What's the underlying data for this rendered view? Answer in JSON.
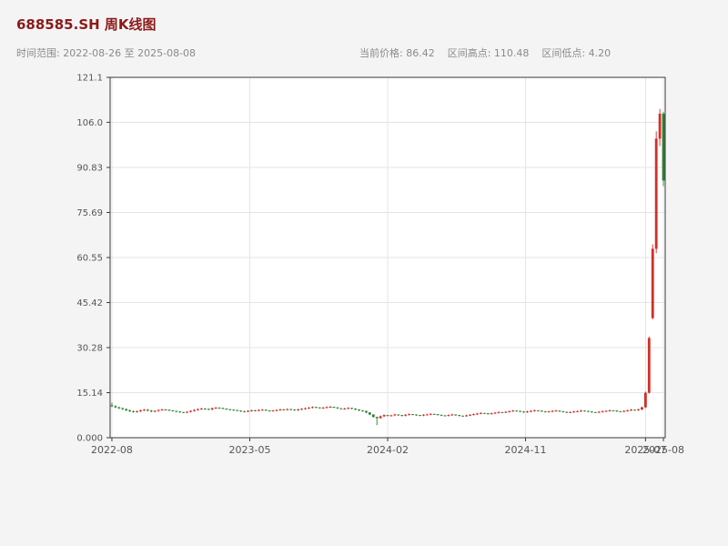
{
  "header": {
    "title": "688585.SH 周K线图",
    "title_color": "#8b1a1a",
    "time_range_label": "时间范围: 2022-08-26 至 2025-08-08",
    "stats": {
      "current_price_label": "当前价格: 86.42",
      "range_high_label": "区间高点: 110.48",
      "range_low_label": "区间低点: 4.20",
      "current_price": 86.42,
      "range_high": 110.48,
      "range_low": 4.2
    }
  },
  "chart_data": {
    "type": "candlestick",
    "title": "688585.SH 周K线图",
    "symbol": "688585.SH",
    "interval": "weekly",
    "date_start": "2022-08-26",
    "date_end": "2025-08-08",
    "xlabel": "",
    "ylabel": "",
    "ylim": [
      0,
      121.1
    ],
    "grid": true,
    "plot_bg": "#ffffff",
    "page_bg": "#f4f4f5",
    "grid_color": "#e4e4e7",
    "spine_color": "#3a3a3a",
    "tick_color": "#555555",
    "up_color": "#d03028",
    "down_color": "#2e7d32",
    "y_ticks": [
      0,
      15.14,
      30.28,
      45.42,
      60.55,
      75.69,
      90.83,
      106.0,
      121.1
    ],
    "y_tick_labels": [
      "0.000",
      "15.14",
      "30.28",
      "45.42",
      "60.55",
      "75.69",
      "90.83",
      "106.0",
      "121.1"
    ],
    "x_tick_labels": [
      "2022-08",
      "2023-05",
      "2024-02",
      "2024-11",
      "2025-07",
      "2025-08"
    ],
    "x_tick_positions": [
      0,
      38.5,
      77,
      115.5,
      149,
      154
    ],
    "candles": [
      [
        10.9,
        11.8,
        10.3,
        10.6
      ],
      [
        10.6,
        10.85,
        9.95,
        10.2
      ],
      [
        10.2,
        10.45,
        9.65,
        9.9
      ],
      [
        9.9,
        10.15,
        9.35,
        9.6
      ],
      [
        9.6,
        9.85,
        8.95,
        9.2
      ],
      [
        9.2,
        9.45,
        8.65,
        8.9
      ],
      [
        8.9,
        9.15,
        8.45,
        8.7
      ],
      [
        8.7,
        9.15,
        8.45,
        8.9
      ],
      [
        8.9,
        9.45,
        8.65,
        9.2
      ],
      [
        9.2,
        9.65,
        8.95,
        9.4
      ],
      [
        9.4,
        9.65,
        8.85,
        9.1
      ],
      [
        9.1,
        9.35,
        8.55,
        8.8
      ],
      [
        8.8,
        9.25,
        8.55,
        9.0
      ],
      [
        9.0,
        9.55,
        8.75,
        9.3
      ],
      [
        9.3,
        9.75,
        9.05,
        9.5
      ],
      [
        9.5,
        9.65,
        9.15,
        9.4
      ],
      [
        9.4,
        9.45,
        8.95,
        9.2
      ],
      [
        9.2,
        9.25,
        8.75,
        9.0
      ],
      [
        9.0,
        9.05,
        8.55,
        8.8
      ],
      [
        8.8,
        8.85,
        8.35,
        8.6
      ],
      [
        8.6,
        8.65,
        8.25,
        8.5
      ],
      [
        8.5,
        8.95,
        8.25,
        8.7
      ],
      [
        8.7,
        9.25,
        8.45,
        9.0
      ],
      [
        9.0,
        9.55,
        8.75,
        9.3
      ],
      [
        9.3,
        9.85,
        9.05,
        9.6
      ],
      [
        9.6,
        10.05,
        9.35,
        9.8
      ],
      [
        9.8,
        9.95,
        9.45,
        9.7
      ],
      [
        9.7,
        9.75,
        9.25,
        9.5
      ],
      [
        9.5,
        10.15,
        9.25,
        9.9
      ],
      [
        9.9,
        10.35,
        9.65,
        10.1
      ],
      [
        10.1,
        10.25,
        9.75,
        10.0
      ],
      [
        10.0,
        10.05,
        9.55,
        9.8
      ],
      [
        9.8,
        9.85,
        9.35,
        9.6
      ],
      [
        9.6,
        9.65,
        9.15,
        9.4
      ],
      [
        9.4,
        9.55,
        9.05,
        9.3
      ],
      [
        9.3,
        9.35,
        8.85,
        9.1
      ],
      [
        9.1,
        9.15,
        8.65,
        8.9
      ],
      [
        8.9,
        9.05,
        8.55,
        8.8
      ],
      [
        8.8,
        9.25,
        8.55,
        9.0
      ],
      [
        9.0,
        9.45,
        8.75,
        9.2
      ],
      [
        9.2,
        9.35,
        8.85,
        9.1
      ],
      [
        9.1,
        9.55,
        8.85,
        9.3
      ],
      [
        9.3,
        9.65,
        9.05,
        9.4
      ],
      [
        9.4,
        9.45,
        8.95,
        9.2
      ],
      [
        9.2,
        9.25,
        8.75,
        9.0
      ],
      [
        9.0,
        9.35,
        8.75,
        9.1
      ],
      [
        9.1,
        9.55,
        8.85,
        9.3
      ],
      [
        9.3,
        9.75,
        9.05,
        9.5
      ],
      [
        9.5,
        9.65,
        9.15,
        9.4
      ],
      [
        9.4,
        9.85,
        9.15,
        9.6
      ],
      [
        9.6,
        9.75,
        9.25,
        9.5
      ],
      [
        9.5,
        9.55,
        9.05,
        9.3
      ],
      [
        9.3,
        9.75,
        9.05,
        9.5
      ],
      [
        9.5,
        9.95,
        9.25,
        9.7
      ],
      [
        9.7,
        10.15,
        9.45,
        9.9
      ],
      [
        9.9,
        10.35,
        9.65,
        10.1
      ],
      [
        10.1,
        10.55,
        9.85,
        10.3
      ],
      [
        10.3,
        10.45,
        9.95,
        10.2
      ],
      [
        10.2,
        10.25,
        9.75,
        10.0
      ],
      [
        10.0,
        10.35,
        9.75,
        10.1
      ],
      [
        10.1,
        10.55,
        9.85,
        10.3
      ],
      [
        10.3,
        10.65,
        10.05,
        10.4
      ],
      [
        10.4,
        10.45,
        9.95,
        10.2
      ],
      [
        10.2,
        10.25,
        9.65,
        9.9
      ],
      [
        9.9,
        9.95,
        9.45,
        9.7
      ],
      [
        9.7,
        10.05,
        9.45,
        9.8
      ],
      [
        9.8,
        10.25,
        9.55,
        10.0
      ],
      [
        10.0,
        10.05,
        9.55,
        9.8
      ],
      [
        9.8,
        9.85,
        9.25,
        9.5
      ],
      [
        9.5,
        9.55,
        8.95,
        9.2
      ],
      [
        9.2,
        9.25,
        8.75,
        9.0
      ],
      [
        9.0,
        9.05,
        8.25,
        8.5
      ],
      [
        8.5,
        8.55,
        7.55,
        7.8
      ],
      [
        7.8,
        7.85,
        6.75,
        7.0
      ],
      [
        7.0,
        7.05,
        4.2,
        6.6
      ],
      [
        6.6,
        7.45,
        6.35,
        7.2
      ],
      [
        7.2,
        7.85,
        6.95,
        7.6
      ],
      [
        7.6,
        7.65,
        7.15,
        7.4
      ],
      [
        7.4,
        7.75,
        7.15,
        7.5
      ],
      [
        7.5,
        8.05,
        7.25,
        7.8
      ],
      [
        7.8,
        7.85,
        7.35,
        7.6
      ],
      [
        7.6,
        7.65,
        7.15,
        7.4
      ],
      [
        7.4,
        7.95,
        7.15,
        7.7
      ],
      [
        7.7,
        8.15,
        7.45,
        7.9
      ],
      [
        7.9,
        7.95,
        7.55,
        7.8
      ],
      [
        7.8,
        7.85,
        7.35,
        7.6
      ],
      [
        7.6,
        7.65,
        7.25,
        7.5
      ],
      [
        7.5,
        7.95,
        7.25,
        7.7
      ],
      [
        7.7,
        8.05,
        7.45,
        7.8
      ],
      [
        7.8,
        8.25,
        7.55,
        8.0
      ],
      [
        8.0,
        8.05,
        7.65,
        7.9
      ],
      [
        7.9,
        7.95,
        7.45,
        7.7
      ],
      [
        7.7,
        7.75,
        7.25,
        7.5
      ],
      [
        7.5,
        7.55,
        7.15,
        7.4
      ],
      [
        7.4,
        7.85,
        7.15,
        7.6
      ],
      [
        7.6,
        8.05,
        7.35,
        7.8
      ],
      [
        7.8,
        7.85,
        7.35,
        7.6
      ],
      [
        7.6,
        7.65,
        7.15,
        7.4
      ],
      [
        7.4,
        7.45,
        7.05,
        7.3
      ],
      [
        7.3,
        7.75,
        7.05,
        7.5
      ],
      [
        7.5,
        7.95,
        7.25,
        7.7
      ],
      [
        7.7,
        8.15,
        7.45,
        7.9
      ],
      [
        7.9,
        8.35,
        7.65,
        8.1
      ],
      [
        8.1,
        8.55,
        7.85,
        8.3
      ],
      [
        8.3,
        8.35,
        7.95,
        8.2
      ],
      [
        8.2,
        8.25,
        7.75,
        8.0
      ],
      [
        8.0,
        8.45,
        7.75,
        8.2
      ],
      [
        8.2,
        8.65,
        7.95,
        8.4
      ],
      [
        8.4,
        8.85,
        8.15,
        8.6
      ],
      [
        8.6,
        8.65,
        8.25,
        8.5
      ],
      [
        8.5,
        8.95,
        8.25,
        8.7
      ],
      [
        8.7,
        9.15,
        8.45,
        8.9
      ],
      [
        8.9,
        9.35,
        8.65,
        9.1
      ],
      [
        9.1,
        9.15,
        8.75,
        9.0
      ],
      [
        9.0,
        9.05,
        8.55,
        8.8
      ],
      [
        8.8,
        8.85,
        8.35,
        8.6
      ],
      [
        8.6,
        9.05,
        8.35,
        8.8
      ],
      [
        8.8,
        9.25,
        8.55,
        9.0
      ],
      [
        9.0,
        9.45,
        8.75,
        9.2
      ],
      [
        9.2,
        9.25,
        8.85,
        9.1
      ],
      [
        9.1,
        9.15,
        8.65,
        8.9
      ],
      [
        8.9,
        8.95,
        8.45,
        8.7
      ],
      [
        8.7,
        9.05,
        8.45,
        8.8
      ],
      [
        8.8,
        9.25,
        8.55,
        9.0
      ],
      [
        9.0,
        9.35,
        8.75,
        9.1
      ],
      [
        9.1,
        9.15,
        8.65,
        8.9
      ],
      [
        8.9,
        8.95,
        8.45,
        8.7
      ],
      [
        8.7,
        8.75,
        8.25,
        8.5
      ],
      [
        8.5,
        8.85,
        8.25,
        8.6
      ],
      [
        8.6,
        9.05,
        8.35,
        8.8
      ],
      [
        8.8,
        9.15,
        8.55,
        8.9
      ],
      [
        8.9,
        9.35,
        8.65,
        9.1
      ],
      [
        9.1,
        9.15,
        8.75,
        9.0
      ],
      [
        9.0,
        9.05,
        8.55,
        8.8
      ],
      [
        8.8,
        8.85,
        8.35,
        8.6
      ],
      [
        8.6,
        8.65,
        8.25,
        8.5
      ],
      [
        8.5,
        8.95,
        8.25,
        8.7
      ],
      [
        8.7,
        9.15,
        8.45,
        8.9
      ],
      [
        8.9,
        9.25,
        8.65,
        9.0
      ],
      [
        9.0,
        9.45,
        8.75,
        9.2
      ],
      [
        9.2,
        9.25,
        8.85,
        9.1
      ],
      [
        9.1,
        9.15,
        8.65,
        8.9
      ],
      [
        8.9,
        8.95,
        8.55,
        8.8
      ],
      [
        8.8,
        9.25,
        8.55,
        9.0
      ],
      [
        9.0,
        9.45,
        8.75,
        9.2
      ],
      [
        9.2,
        9.65,
        8.95,
        9.4
      ],
      [
        9.4,
        9.45,
        9.05,
        9.3
      ],
      [
        9.3,
        9.75,
        9.05,
        9.5
      ],
      [
        9.5,
        10.45,
        9.25,
        10.2
      ],
      [
        10.2,
        15.5,
        10.0,
        15.1
      ],
      [
        15.1,
        34.0,
        14.8,
        33.5
      ],
      [
        40.2,
        65.0,
        39.8,
        63.5
      ],
      [
        63.5,
        103.0,
        62.0,
        100.5
      ],
      [
        100.5,
        110.48,
        98.0,
        108.9
      ],
      [
        108.9,
        109.5,
        84.5,
        86.42
      ]
    ]
  }
}
